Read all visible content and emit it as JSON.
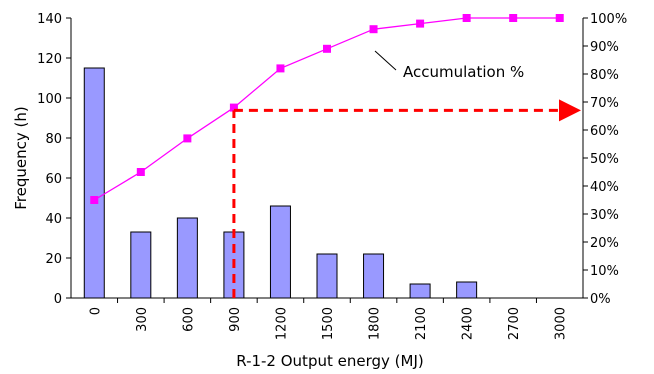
{
  "chart_data": {
    "type": "bar",
    "categories": [
      "0",
      "300",
      "600",
      "900",
      "1200",
      "1500",
      "1800",
      "2100",
      "2400",
      "2700",
      "3000"
    ],
    "series": [
      {
        "type": "bar",
        "axis": "left",
        "values": [
          115,
          33,
          40,
          33,
          46,
          22,
          22,
          7,
          8,
          0,
          0
        ]
      },
      {
        "name": "Accumulation %",
        "type": "line",
        "axis": "right",
        "values": [
          35,
          45,
          57,
          68,
          82,
          89,
          96,
          98,
          100,
          100,
          100
        ]
      }
    ],
    "xlabel": "R-1-2  Output energy (MJ)",
    "ylabel": "Frequency (h)",
    "ylim": [
      0,
      140
    ],
    "y2lim": [
      0,
      100
    ],
    "yticks": [
      "0",
      "20",
      "40",
      "60",
      "80",
      "100",
      "120",
      "140"
    ],
    "y2ticks": [
      "0%",
      "10%",
      "20%",
      "30%",
      "40%",
      "50%",
      "60%",
      "70%",
      "80%",
      "90%",
      "100%"
    ],
    "reference": {
      "x": "900",
      "y2": 67
    },
    "colors": {
      "bar_fill": "#9999ff",
      "bar_edge": "#000000",
      "line": "#ff00ff",
      "reference": "#ff0000"
    },
    "grid": false
  }
}
